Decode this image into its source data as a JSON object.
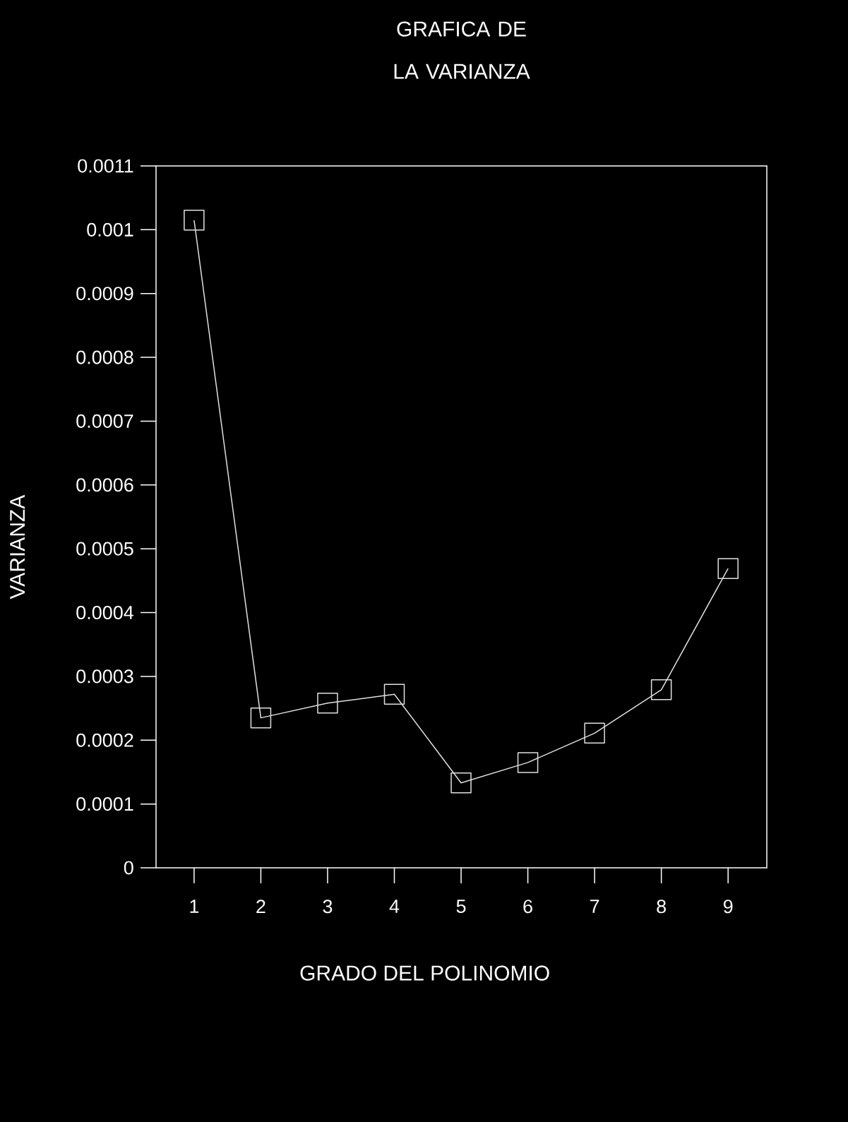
{
  "chart_data": {
    "type": "line",
    "title": "GRAFICA DE LA VARIANZA",
    "xlabel": "GRADO DEL POLINOMIO",
    "ylabel": "VARIANZA",
    "x": [
      1,
      2,
      3,
      4,
      5,
      6,
      7,
      8,
      9
    ],
    "values": [
      0.001015,
      0.000235,
      0.000258,
      0.000272,
      0.000133,
      0.000165,
      0.000211,
      0.000279,
      0.000469
    ],
    "color": "#e0e0e0",
    "marker": "square",
    "line_style": "solid",
    "grid": false,
    "xlim": [
      0.43,
      9.58
    ],
    "xticks": [
      1,
      2,
      3,
      4,
      5,
      6,
      7,
      8,
      9
    ],
    "ylim": [
      0,
      0.0011
    ],
    "yticks": [
      0,
      0.0001,
      0.0002,
      0.0003,
      0.0004,
      0.0005,
      0.0006,
      0.0007,
      0.0008,
      0.0009,
      0.001,
      0.0011
    ]
  }
}
